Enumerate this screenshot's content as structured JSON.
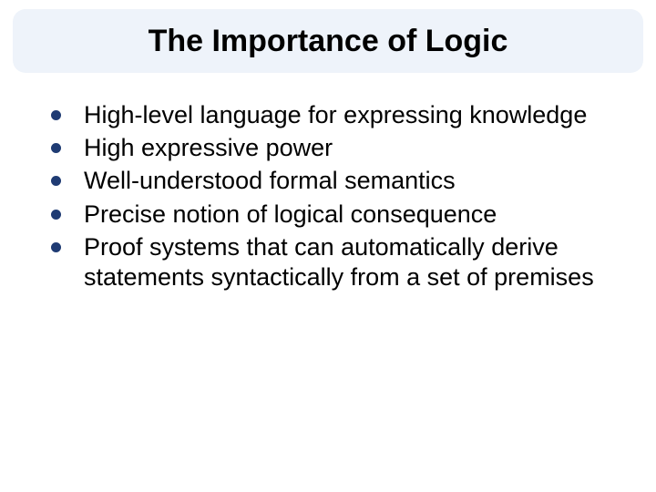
{
  "slide": {
    "title": "The Importance of Logic",
    "title_bg_color": "#eef3fa",
    "title_fontsize": 34,
    "bullet_color": "#1f3b73",
    "body_fontsize": 27,
    "background_color": "#ffffff",
    "bullets": [
      "High-level language for expressing knowledge",
      "High expressive power",
      "Well-understood formal semantics",
      "Precise notion of logical consequence",
      "Proof systems that can automatically derive statements syntactically from a set of premises"
    ]
  }
}
